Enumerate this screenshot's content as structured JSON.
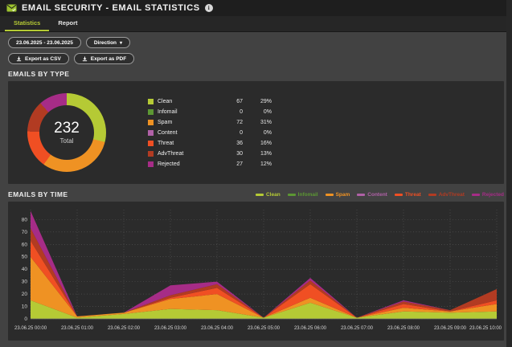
{
  "header": {
    "title": "EMAIL SECURITY - EMAIL STATISTICS",
    "info_icon": "i"
  },
  "tabs": [
    {
      "label": "Statistics",
      "active": true
    },
    {
      "label": "Report",
      "active": false
    }
  ],
  "toolbar": {
    "date_range": "23.06.2025 - 23.06.2025",
    "direction_label": "Direction",
    "export_csv": "Export as CSV",
    "export_pdf": "Export as PDF"
  },
  "colors": {
    "accent": "#b5ca35",
    "panel": "#2b2b2b",
    "grid": "#585858",
    "axis_text": "#d6d6d6"
  },
  "emails_by_type": {
    "title": "EMAILS BY TYPE"
  },
  "emails_by_time": {
    "title": "EMAILS BY TIME"
  },
  "chart_data": [
    {
      "type": "pie",
      "title": "EMAILS BY TYPE",
      "total": "232",
      "total_label": "Total",
      "rows": [
        {
          "label": "Clean",
          "count": 67,
          "pct": "29%",
          "color": "#b5ca35"
        },
        {
          "label": "Infomail",
          "count": 0,
          "pct": "0%",
          "color": "#5c9733"
        },
        {
          "label": "Spam",
          "count": 72,
          "pct": "31%",
          "color": "#ef9223"
        },
        {
          "label": "Content",
          "count": 0,
          "pct": "0%",
          "color": "#b061a7"
        },
        {
          "label": "Threat",
          "count": 36,
          "pct": "16%",
          "color": "#f04f23"
        },
        {
          "label": "AdvThreat",
          "count": 30,
          "pct": "13%",
          "color": "#b23b22"
        },
        {
          "label": "Rejected",
          "count": 27,
          "pct": "12%",
          "color": "#a62c87"
        }
      ]
    },
    {
      "type": "area",
      "stacked": true,
      "title": "EMAILS BY TIME",
      "x": [
        "23.06.25 00:00",
        "23.06.25 01:00",
        "23.06.25 02:00",
        "23.06.25 03:00",
        "23.06.25 04:00",
        "23.06.25 05:00",
        "23.06.25 06:00",
        "23.06.25 07:00",
        "23.06.25 08:00",
        "23.06.25 09:00",
        "23.06.25 10:00"
      ],
      "y_ticks": [
        0,
        10,
        20,
        30,
        40,
        50,
        60,
        70,
        80
      ],
      "ylim": [
        0,
        88
      ],
      "grid": true,
      "legend_position": "top-right",
      "series": [
        {
          "name": "Clean",
          "color": "#b5ca35",
          "values": [
            15,
            1,
            4,
            8,
            7,
            1,
            13,
            1,
            6,
            5,
            6
          ]
        },
        {
          "name": "Infomail",
          "color": "#5c9733",
          "values": [
            0,
            0,
            0,
            0,
            0,
            0,
            0,
            0,
            0,
            0,
            0
          ]
        },
        {
          "name": "Spam",
          "color": "#ef9223",
          "values": [
            35,
            1,
            1,
            8,
            13,
            0,
            4,
            0,
            3,
            1,
            6
          ]
        },
        {
          "name": "Content",
          "color": "#b061a7",
          "values": [
            0,
            0,
            0,
            0,
            0,
            0,
            0,
            0,
            0,
            0,
            0
          ]
        },
        {
          "name": "Threat",
          "color": "#f04f23",
          "values": [
            13,
            0,
            0,
            1,
            5,
            0,
            11,
            0,
            3,
            0,
            3
          ]
        },
        {
          "name": "AdvThreat",
          "color": "#b23b22",
          "values": [
            10,
            0,
            0,
            2,
            3,
            0,
            3,
            0,
            2,
            1,
            9
          ]
        },
        {
          "name": "Rejected",
          "color": "#a62c87",
          "values": [
            14,
            0,
            0,
            8,
            2,
            0,
            2,
            0,
            1,
            0,
            0
          ]
        }
      ]
    }
  ]
}
